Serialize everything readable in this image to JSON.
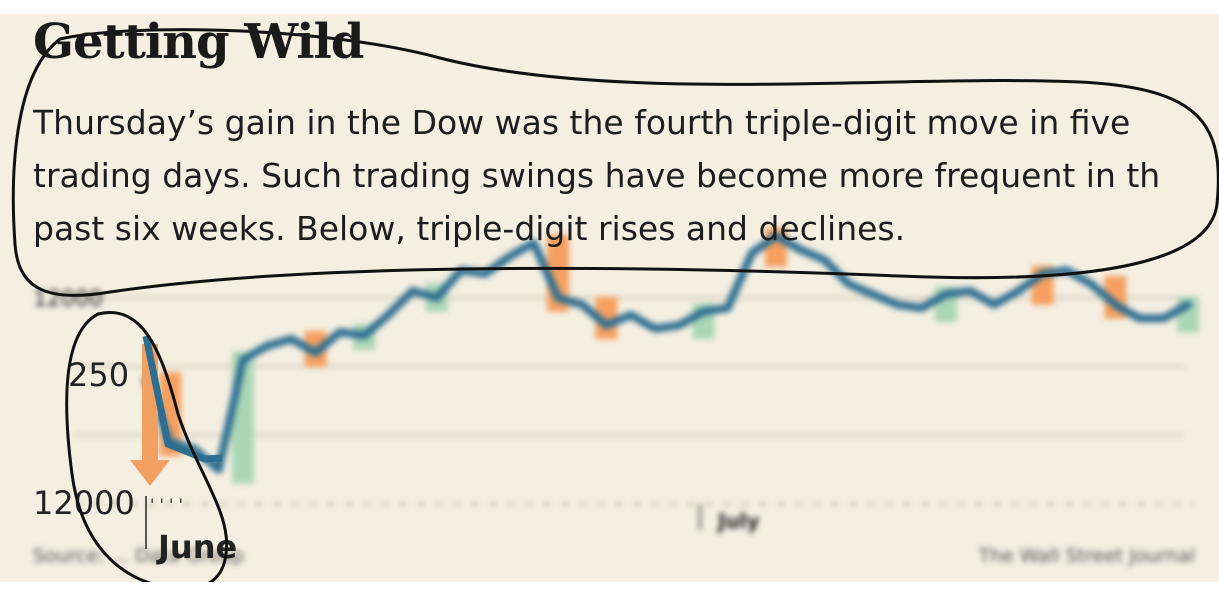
{
  "chart_data": {
    "type": "line",
    "title": "Getting Wild",
    "subtitle": "Thursday’s gain in the Dow was the fourth triple-digit move in five\ntrading days. Such trading swings have become more frequent in th\npast six weeks. Below, triple-digit rises and declines.",
    "y_tick_labels": [
      "12000",
      "250",
      "12000"
    ],
    "x_tick_labels": [
      "June",
      "July"
    ],
    "source": "Source: ... Data Group",
    "credit": "The Wall Street Journal",
    "grid": true,
    "series": [
      {
        "color": "#2d6e91",
        "values": [
          12180,
          12090,
          12080,
          12050,
          12210,
          12230,
          12240,
          12220,
          12250,
          12245,
          12275,
          12310,
          12300,
          12340,
          12335,
          12360,
          12380,
          12300,
          12290,
          12260,
          12275,
          12255,
          12260,
          12280,
          12285,
          12365,
          12390,
          12370,
          12355,
          12320,
          12305,
          12290,
          12285,
          12305,
          12310,
          12290,
          12310,
          12335,
          12340,
          12320,
          12290,
          12270,
          12270,
          12290
        ]
      }
    ],
    "moves": [
      {
        "index": 1,
        "direction": "down"
      },
      {
        "index": 4,
        "direction": "up"
      },
      {
        "index": 7,
        "direction": "down"
      },
      {
        "index": 9,
        "direction": "up"
      },
      {
        "index": 12,
        "direction": "up"
      },
      {
        "index": 17,
        "direction": "down"
      },
      {
        "index": 19,
        "direction": "down"
      },
      {
        "index": 23,
        "direction": "up"
      },
      {
        "index": 26,
        "direction": "down"
      },
      {
        "index": 33,
        "direction": "up"
      },
      {
        "index": 37,
        "direction": "down"
      },
      {
        "index": 40,
        "direction": "down"
      },
      {
        "index": 43,
        "direction": "up"
      }
    ],
    "colors": {
      "up": "#a9d6b5",
      "down": "#f5a060",
      "line": "#2d6e91",
      "grid": "#d8d2c2",
      "background": "#f5efe1"
    }
  }
}
